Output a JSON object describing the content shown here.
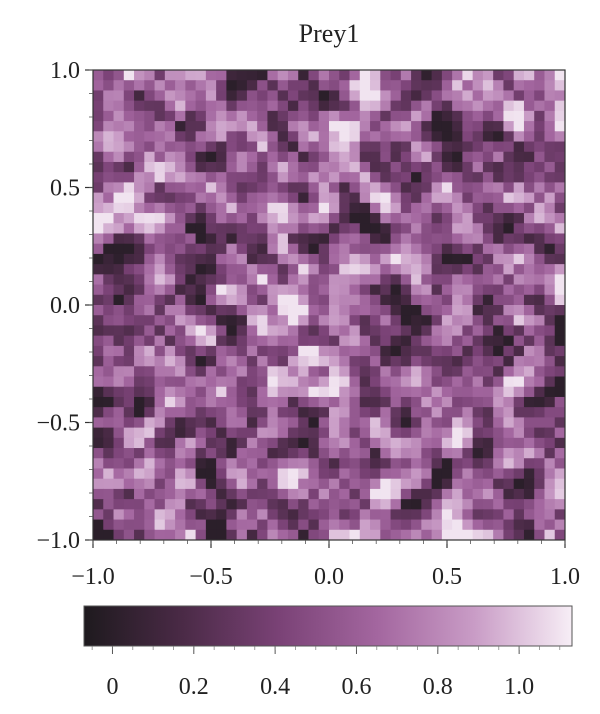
{
  "chart_data": {
    "type": "heatmap",
    "title": "Prey1",
    "xlabel": "",
    "ylabel": "",
    "xlim": [
      -1.0,
      1.0
    ],
    "ylim": [
      -1.0,
      1.0
    ],
    "x_ticks": [
      "−1.0",
      "−0.5",
      "0.0",
      "0.5",
      "1.0"
    ],
    "x_tick_values": [
      -1.0,
      -0.5,
      0.0,
      0.5,
      1.0
    ],
    "y_ticks": [
      "1.0",
      "0.5",
      "0.0",
      "−0.5",
      "−1.0"
    ],
    "y_tick_values": [
      1.0,
      0.5,
      0.0,
      -0.5,
      -1.0
    ],
    "colorbar": {
      "range": [
        -0.07,
        1.13
      ],
      "ticks": [
        "0",
        "0.2",
        "0.4",
        "0.6",
        "0.8",
        "1.0"
      ],
      "tick_values": [
        0,
        0.2,
        0.4,
        0.6,
        0.8,
        1.0
      ],
      "colors": [
        "#1e1a1e",
        "#4a2a46",
        "#7a4276",
        "#a3669f",
        "#c99cc6",
        "#f7eef6"
      ]
    },
    "field": {
      "description_of_pattern": "random spatial noise field of prey density",
      "value_min": 0.0,
      "value_max": 1.1,
      "mean_value": 0.55
    },
    "grid": false,
    "legend": "colorbar-bottom"
  }
}
